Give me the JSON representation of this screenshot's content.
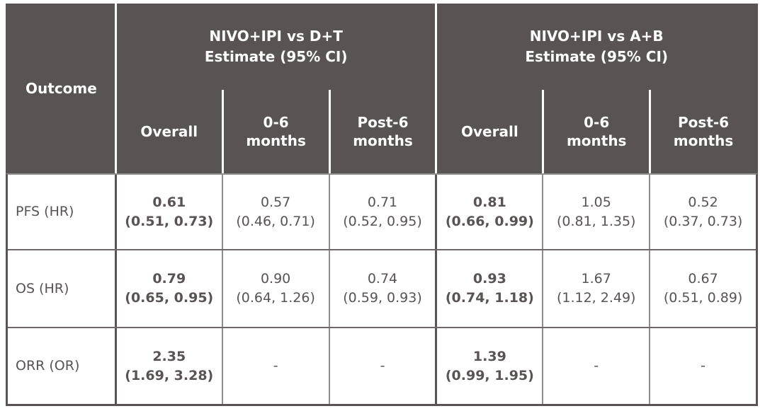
{
  "header": {
    "outcome_label": "Outcome",
    "groups": [
      {
        "line1": "NIVO+IPI vs D+T",
        "line2": "Estimate (95% CI)"
      },
      {
        "line1": "NIVO+IPI vs A+B",
        "line2": "Estimate (95% CI)"
      }
    ],
    "subcolumns": [
      "Overall",
      "0-6 months",
      "Post-6 months",
      "Overall",
      "0-6 months",
      "Post-6 months"
    ]
  },
  "rows": [
    {
      "label": "PFS (HR)",
      "cells": [
        {
          "value": "0.61",
          "ci": "(0.51, 0.73)"
        },
        {
          "value": "0.57",
          "ci": "(0.46, 0.71)"
        },
        {
          "value": "0.71",
          "ci": "(0.52, 0.95)"
        },
        {
          "value": "0.81",
          "ci": "(0.66, 0.99)"
        },
        {
          "value": "1.05",
          "ci": "(0.81, 1.35)"
        },
        {
          "value": "0.52",
          "ci": "(0.37, 0.73)"
        }
      ]
    },
    {
      "label": "OS (HR)",
      "cells": [
        {
          "value": "0.79",
          "ci": "(0.65, 0.95)"
        },
        {
          "value": "0.90",
          "ci": "(0.64, 1.26)"
        },
        {
          "value": "0.74",
          "ci": "(0.59, 0.93)"
        },
        {
          "value": "0.93",
          "ci": "(0.74, 1.18)"
        },
        {
          "value": "1.67",
          "ci": "(1.12, 2.49)"
        },
        {
          "value": "0.67",
          "ci": "(0.51, 0.89)"
        }
      ]
    },
    {
      "label": "ORR (OR)",
      "cells": [
        {
          "value": "2.35",
          "ci": "(1.69, 3.28)"
        },
        {
          "value": "-",
          "ci": ""
        },
        {
          "value": "-",
          "ci": ""
        },
        {
          "value": "1.39",
          "ci": "(0.99, 1.95)"
        },
        {
          "value": "-",
          "ci": ""
        },
        {
          "value": "-",
          "ci": ""
        }
      ]
    }
  ],
  "colors": {
    "header_bg": "#595353",
    "header_text": "#fdfdfd",
    "body_text": "#595353",
    "divider_light": "#928d8d",
    "divider_dark": "#595353",
    "header_divider_white": "#ffffff"
  },
  "chart_data": {
    "type": "table",
    "title": "",
    "columns": [
      "Outcome",
      "NIVO+IPI vs D+T Overall",
      "NIVO+IPI vs D+T 0-6 months",
      "NIVO+IPI vs D+T Post-6 months",
      "NIVO+IPI vs A+B Overall",
      "NIVO+IPI vs A+B 0-6 months",
      "NIVO+IPI vs A+B Post-6 months"
    ],
    "rows": [
      [
        "PFS (HR)",
        "0.61 (0.51, 0.73)",
        "0.57 (0.46, 0.71)",
        "0.71 (0.52, 0.95)",
        "0.81 (0.66, 0.99)",
        "1.05 (0.81, 1.35)",
        "0.52 (0.37, 0.73)"
      ],
      [
        "OS (HR)",
        "0.79 (0.65, 0.95)",
        "0.90 (0.64, 1.26)",
        "0.74 (0.59, 0.93)",
        "0.93 (0.74, 1.18)",
        "1.67 (1.12, 2.49)",
        "0.67 (0.51, 0.89)"
      ],
      [
        "ORR (OR)",
        "2.35 (1.69, 3.28)",
        "-",
        "-",
        "1.39 (0.99, 1.95)",
        "-",
        "-"
      ]
    ]
  }
}
